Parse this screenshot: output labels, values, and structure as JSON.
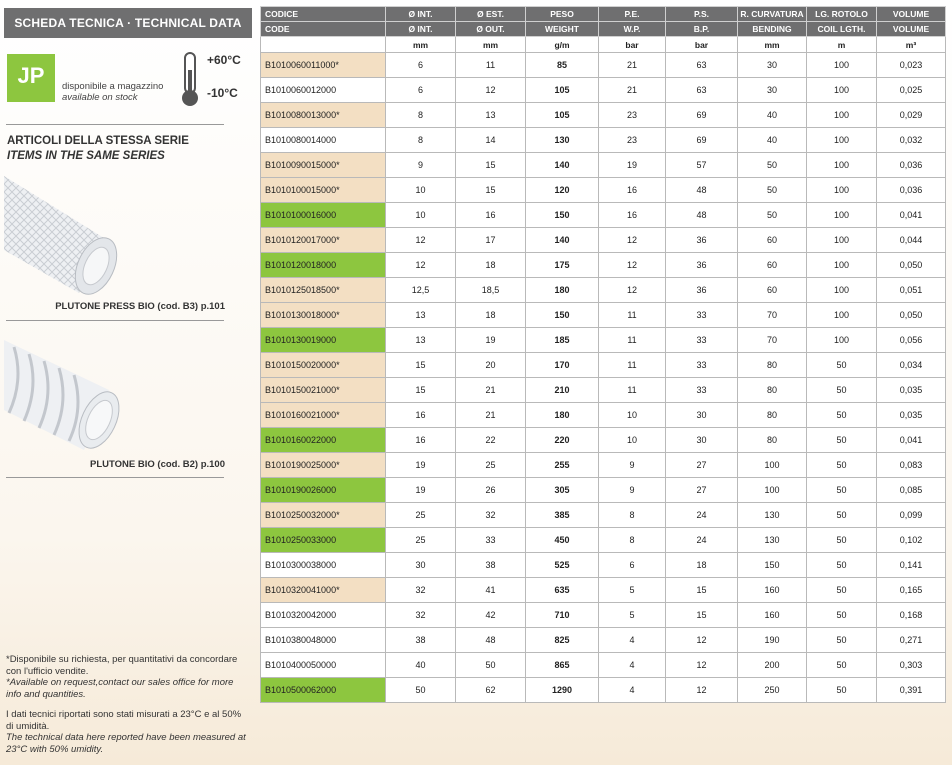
{
  "sidebar": {
    "title": "SCHEDA TECNICA · TECHNICAL DATA",
    "logo": "JP",
    "stock_it": "disponibile a magazzino",
    "stock_en": "available on stock",
    "temp_max": "+60°C",
    "temp_min": "-10°C",
    "series_it": "ARTICOLI DELLA STESSA SERIE",
    "series_en": "ITEMS IN THE SAME SERIES",
    "products": [
      "PLUTONE PRESS BIO (cod. B3) p.101",
      "PLUTONE BIO (cod. B2) p.100"
    ],
    "notes": [
      [
        "*Disponibile su richiesta, per quantitativi da concordare con l'ufficio vendite.",
        "*Available on request,contact our sales office for more info and quantities."
      ],
      [
        "I dati tecnici riportati sono stati misurati a 23°C e al 50% di umidità.",
        "The technical data here reported have been measured at 23°C with 50% umidity."
      ]
    ]
  },
  "table": {
    "header_it": [
      "CODICE",
      "Ø INT.",
      "Ø EST.",
      "PESO",
      "P.E.",
      "P.S.",
      "R. CURVATURA",
      "LG. ROTOLO",
      "VOLUME"
    ],
    "header_en": [
      "CODE",
      "Ø INT.",
      "Ø OUT.",
      "WEIGHT",
      "W.P.",
      "B.P.",
      "BENDING",
      "COIL LGTH.",
      "VOLUME"
    ],
    "units": [
      null,
      "mm",
      "mm",
      "g/m",
      "bar",
      "bar",
      "mm",
      "m",
      "m³"
    ],
    "code_colors": {
      "request": "#f3dfc3",
      "stock": "#8dc63f",
      "standard": "#ffffff"
    },
    "rows": [
      [
        "B1010060011000*",
        "6",
        "11",
        "85",
        "21",
        "63",
        "30",
        "100",
        "0,023"
      ],
      [
        "B1010060012000",
        "6",
        "12",
        "105",
        "21",
        "63",
        "30",
        "100",
        "0,025"
      ],
      [
        "B1010080013000*",
        "8",
        "13",
        "105",
        "23",
        "69",
        "40",
        "100",
        "0,029"
      ],
      [
        "B1010080014000",
        "8",
        "14",
        "130",
        "23",
        "69",
        "40",
        "100",
        "0,032"
      ],
      [
        "B1010090015000*",
        "9",
        "15",
        "140",
        "19",
        "57",
        "50",
        "100",
        "0,036"
      ],
      [
        "B1010100015000*",
        "10",
        "15",
        "120",
        "16",
        "48",
        "50",
        "100",
        "0,036"
      ],
      [
        "B1010100016000",
        "10",
        "16",
        "150",
        "16",
        "48",
        "50",
        "100",
        "0,041"
      ],
      [
        "B1010120017000*",
        "12",
        "17",
        "140",
        "12",
        "36",
        "60",
        "100",
        "0,044"
      ],
      [
        "B1010120018000",
        "12",
        "18",
        "175",
        "12",
        "36",
        "60",
        "100",
        "0,050"
      ],
      [
        "B1010125018500*",
        "12,5",
        "18,5",
        "180",
        "12",
        "36",
        "60",
        "100",
        "0,051"
      ],
      [
        "B1010130018000*",
        "13",
        "18",
        "150",
        "11",
        "33",
        "70",
        "100",
        "0,050"
      ],
      [
        "B1010130019000",
        "13",
        "19",
        "185",
        "11",
        "33",
        "70",
        "100",
        "0,056"
      ],
      [
        "B1010150020000*",
        "15",
        "20",
        "170",
        "11",
        "33",
        "80",
        "50",
        "0,034"
      ],
      [
        "B1010150021000*",
        "15",
        "21",
        "210",
        "11",
        "33",
        "80",
        "50",
        "0,035"
      ],
      [
        "B1010160021000*",
        "16",
        "21",
        "180",
        "10",
        "30",
        "80",
        "50",
        "0,035"
      ],
      [
        "B1010160022000",
        "16",
        "22",
        "220",
        "10",
        "30",
        "80",
        "50",
        "0,041"
      ],
      [
        "B1010190025000*",
        "19",
        "25",
        "255",
        "9",
        "27",
        "100",
        "50",
        "0,083"
      ],
      [
        "B1010190026000",
        "19",
        "26",
        "305",
        "9",
        "27",
        "100",
        "50",
        "0,085"
      ],
      [
        "B1010250032000*",
        "25",
        "32",
        "385",
        "8",
        "24",
        "130",
        "50",
        "0,099"
      ],
      [
        "B1010250033000",
        "25",
        "33",
        "450",
        "8",
        "24",
        "130",
        "50",
        "0,102"
      ],
      [
        "B1010300038000",
        "30",
        "38",
        "525",
        "6",
        "18",
        "150",
        "50",
        "0,141"
      ],
      [
        "B1010320041000*",
        "32",
        "41",
        "635",
        "5",
        "15",
        "160",
        "50",
        "0,165"
      ],
      [
        "B1010320042000",
        "32",
        "42",
        "710",
        "5",
        "15",
        "160",
        "50",
        "0,168"
      ],
      [
        "B1010380048000",
        "38",
        "48",
        "825",
        "4",
        "12",
        "190",
        "50",
        "0,271"
      ],
      [
        "B1010400050000",
        "40",
        "50",
        "865",
        "4",
        "12",
        "200",
        "50",
        "0,303"
      ],
      [
        "B1010500062000",
        "50",
        "62",
        "1290",
        "4",
        "12",
        "250",
        "50",
        "0,391"
      ]
    ],
    "row_types": [
      "request",
      "standard",
      "request",
      "standard",
      "request",
      "request",
      "stock",
      "request",
      "stock",
      "request",
      "request",
      "stock",
      "request",
      "request",
      "request",
      "stock",
      "request",
      "stock",
      "request",
      "stock",
      "standard",
      "request",
      "standard",
      "standard",
      "standard",
      "stock"
    ]
  }
}
